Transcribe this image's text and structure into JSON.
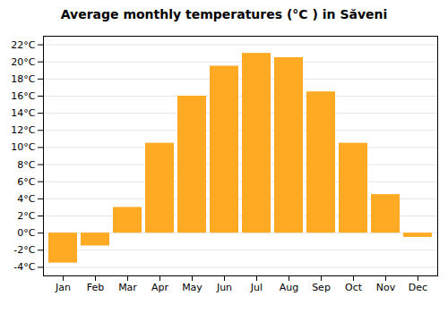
{
  "chart_data": {
    "type": "bar",
    "title": "Average monthly temperatures (°C ) in Săveni",
    "categories": [
      "Jan",
      "Feb",
      "Mar",
      "Apr",
      "May",
      "Jun",
      "Jul",
      "Aug",
      "Sep",
      "Oct",
      "Nov",
      "Dec"
    ],
    "values": [
      -3.5,
      -1.5,
      3.0,
      10.5,
      16.0,
      19.5,
      21.0,
      20.5,
      16.5,
      10.5,
      4.5,
      -0.5
    ],
    "color": "#FFAA22",
    "ylim": [
      -5,
      23
    ],
    "yticks": [
      {
        "value": -4,
        "label": "-4°C"
      },
      {
        "value": -2,
        "label": "-2°C"
      },
      {
        "value": 0,
        "label": "0°C"
      },
      {
        "value": 2,
        "label": "2°C"
      },
      {
        "value": 4,
        "label": "4°C"
      },
      {
        "value": 6,
        "label": "6°C"
      },
      {
        "value": 8,
        "label": "8°C"
      },
      {
        "value": 10,
        "label": "10°C"
      },
      {
        "value": 12,
        "label": "12°C"
      },
      {
        "value": 14,
        "label": "14°C"
      },
      {
        "value": 16,
        "label": "16°C"
      },
      {
        "value": 18,
        "label": "18°C"
      },
      {
        "value": 20,
        "label": "20°C"
      },
      {
        "value": 22,
        "label": "22°C"
      }
    ],
    "grid": true
  }
}
